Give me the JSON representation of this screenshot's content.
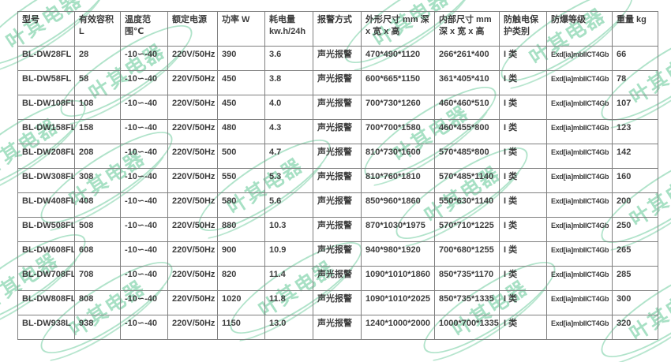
{
  "watermark": {
    "text": "叶其电器",
    "color": "#a7e0c4"
  },
  "table": {
    "headers": [
      "型号",
      "有效容积\nL",
      "温度范\n围℃",
      "额定电源",
      "功率 W",
      "耗电量\nkw.h/24h",
      "报警方式",
      "外形尺寸 mm 深\nx 宽 x 高",
      "内部尺寸 mm\n深 x 宽 x 高",
      "防触电保\n护类别",
      "防爆等级",
      "重量 kg"
    ],
    "rows": [
      [
        "BL-DW28FL",
        "28",
        "-10∽-40",
        "220V/50Hz",
        "390",
        "3.6",
        "声光报警",
        "470*490*1120",
        "266*261*400",
        "I 类",
        "Exd[ia]mbIICT4Gb",
        "66"
      ],
      [
        "BL-DW58FL",
        "58",
        "-10∽-40",
        "220V/50Hz",
        "450",
        "3.8",
        "声光报警",
        "600*665*1150",
        "361*405*410",
        "I 类",
        "Exd[ia]mbIICT4Gb",
        "78"
      ],
      [
        "BL-DW108FL",
        "108",
        "-10∽-40",
        "220V/50Hz",
        "450",
        "4.0",
        "声光报警",
        "700*730*1260",
        "460*460*510",
        "I 类",
        "Exd[ia]mbIICT4Gb",
        "107"
      ],
      [
        "BL-DW158FL",
        "158",
        "-10∽-40",
        "220V/50Hz",
        "480",
        "4.3",
        "声光报警",
        "700*700*1580",
        "460*455*800",
        "I 类",
        "Exd[ia]mbIICT4Gb",
        "123"
      ],
      [
        "BL-DW208FL",
        "208",
        "-10∽-40",
        "220V/50Hz",
        "500",
        "4.7",
        "声光报警",
        "810*730*1600",
        "570*485*800",
        "I 类",
        "Exd[ia]mbIICT4Gb",
        "142"
      ],
      [
        "BL-DW308FL",
        "308",
        "-10∽-40",
        "220V/50Hz",
        "550",
        "5.3",
        "声光报警",
        "810*760*1810",
        "570*485*1140",
        "I 类",
        "Exd[ia]mbIICT4Gb",
        "160"
      ],
      [
        "BL-DW408FL",
        "408",
        "-10∽-40",
        "220V/50Hz",
        "580",
        "5.6",
        "声光报警",
        "850*960*1860",
        "550*630*1140",
        "I 类",
        "Exd[ia]mbIICT4Gb",
        "200"
      ],
      [
        "BL-DW508FL",
        "508",
        "-10∽-40",
        "220V/50Hz",
        "880",
        "10.3",
        "声光报警",
        "870*1030*1975",
        "570*710*1225",
        "I 类",
        "Exd[ia]mbIICT4Gb",
        "250"
      ],
      [
        "BL-DW608FL",
        "608",
        "-10∽-40",
        "220V/50Hz",
        "900",
        "10.9",
        "声光报警",
        "940*980*1920",
        "700*680*1255",
        "I 类",
        "Exd[ia]mbIICT4Gb",
        "265"
      ],
      [
        "BL-DW708FL",
        "708",
        "-10∽-40",
        "220V/50Hz",
        "820",
        "11.4",
        "声光报警",
        "1090*1010*1860",
        "850*735*1170",
        "I 类",
        "Exd[ia]mbIICT4Gb",
        "285"
      ],
      [
        "BL-DW808FL",
        "808",
        "-10∽-40",
        "220V/50Hz",
        "1020",
        "11.8",
        "声光报警",
        "1090*1010*2025",
        "850*735*1335",
        "I 类",
        "Exd[ia]mbIICT4Gb",
        "300"
      ],
      [
        "BL-DW938L",
        "938",
        "-10∽-40",
        "220V/50Hz",
        "1150",
        "13.0",
        "声光报警",
        "1240*1000*2000",
        "1000*700*1335",
        "I 类",
        "Exd[ia]mbIICT4Gb",
        "320"
      ]
    ]
  }
}
